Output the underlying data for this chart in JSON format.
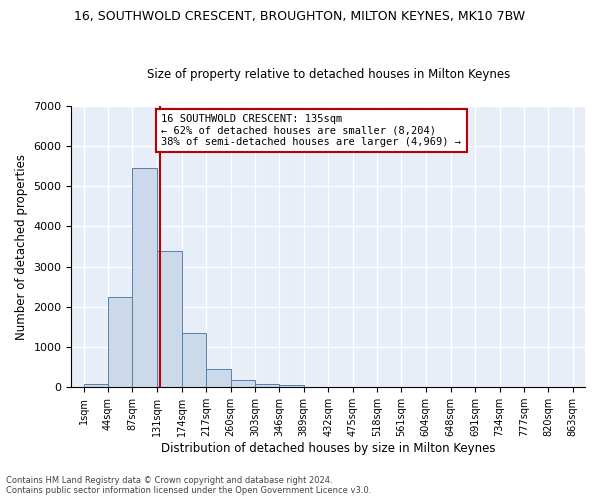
{
  "title1": "16, SOUTHWOLD CRESCENT, BROUGHTON, MILTON KEYNES, MK10 7BW",
  "title2": "Size of property relative to detached houses in Milton Keynes",
  "xlabel": "Distribution of detached houses by size in Milton Keynes",
  "ylabel": "Number of detached properties",
  "bin_edges": [
    1,
    44,
    87,
    131,
    174,
    217,
    260,
    303,
    346,
    389,
    432,
    475,
    518,
    561,
    604,
    648,
    691,
    734,
    777,
    820,
    863
  ],
  "bar_heights": [
    75,
    2250,
    5450,
    3400,
    1350,
    450,
    175,
    75,
    50,
    0,
    0,
    0,
    0,
    0,
    0,
    0,
    0,
    0,
    0,
    0
  ],
  "bar_color": "#ccd9ea",
  "bar_edge_color": "#5580aa",
  "vline_x": 135,
  "vline_color": "#bb0000",
  "annotation_text": "16 SOUTHWOLD CRESCENT: 135sqm\n← 62% of detached houses are smaller (8,204)\n38% of semi-detached houses are larger (4,969) →",
  "annotation_box_color": "#bb0000",
  "ylim": [
    0,
    7000
  ],
  "yticks": [
    0,
    1000,
    2000,
    3000,
    4000,
    5000,
    6000,
    7000
  ],
  "background_color": "#e8eef8",
  "grid_color": "#ffffff",
  "footer1": "Contains HM Land Registry data © Crown copyright and database right 2024.",
  "footer2": "Contains public sector information licensed under the Open Government Licence v3.0."
}
